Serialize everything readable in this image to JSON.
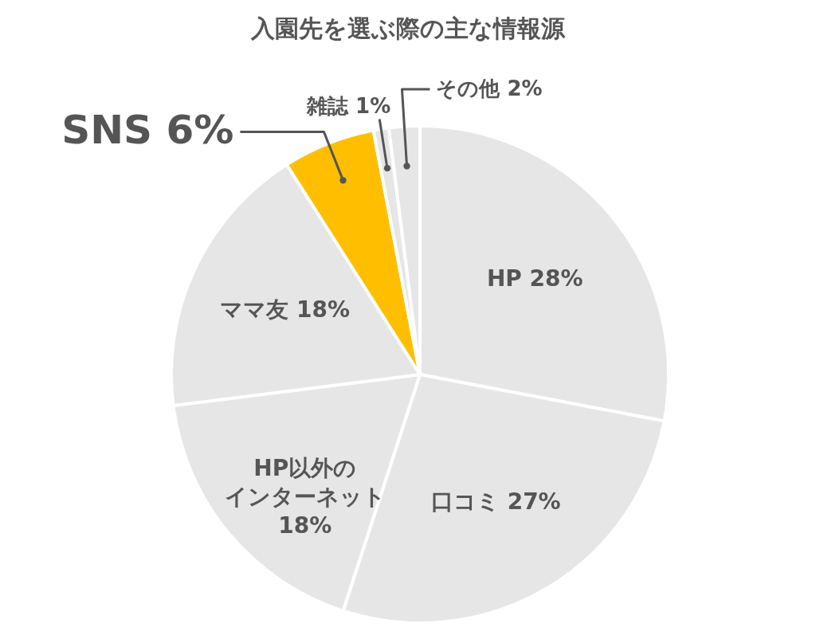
{
  "chart_data": {
    "type": "pie",
    "title": "入園先を選ぶ際の主な情報源",
    "categories": [
      "HP",
      "口コミ",
      "HP以外のインターネット",
      "ママ友",
      "SNS",
      "雑誌",
      "その他"
    ],
    "values": [
      28,
      27,
      18,
      18,
      6,
      1,
      2
    ],
    "value_labels": [
      "28%",
      "27%",
      "18%",
      "18%",
      "6%",
      "1%",
      "2%"
    ],
    "colors": [
      "#e6e6e6",
      "#e6e6e6",
      "#e6e6e6",
      "#e6e6e6",
      "#ffbf00",
      "#e6e6e6",
      "#e6e6e6"
    ],
    "legend": false
  }
}
